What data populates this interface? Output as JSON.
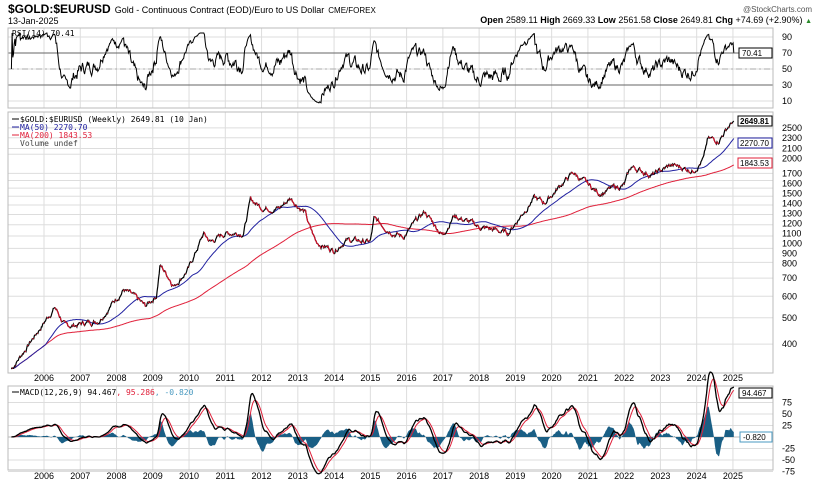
{
  "header": {
    "symbol": "$GOLD:$EURUSD",
    "description": "Gold - Continuous Contract (EOD)/Euro to US Dollar",
    "exchange": "CME/FOREX",
    "brand": "@StockCharts.com",
    "date": "13-Jan-2025",
    "open_label": "Open",
    "open": "2589.11",
    "high_label": "High",
    "high": "2669.33",
    "low_label": "Low",
    "low": "2561.58",
    "close_label": "Close",
    "close": "2649.81",
    "chg_label": "Chg",
    "chg": "+74.69 (+2.90%)",
    "up_arrow": "▲"
  },
  "colors": {
    "price": "#000000",
    "price_down": "#d0102a",
    "ma50": "#2020a0",
    "ma200": "#e0203a",
    "macd_signal": "#e0203a",
    "histogram": "#1a5f85",
    "rsi_fill": "#4a7a4a",
    "grid": "#dddddd"
  },
  "rsi": {
    "legend": "RSI(14) 70.41",
    "value_label": "70.41",
    "ticks": [
      "90",
      "70",
      "50",
      "30",
      "10"
    ],
    "ylim": [
      0,
      100
    ]
  },
  "price": {
    "legend_main": "$GOLD:$EURUSD (Weekly) 2649.81 (10 Jan)",
    "legend_ma50": "MA(50) 2270.70",
    "legend_ma200": "MA(200) 1843.53",
    "legend_volume": "Volume undef",
    "last_label": "2649.81",
    "ma50_label": "2270.70",
    "ma200_label": "1843.53",
    "ticks": [
      "2500",
      "2300",
      "2100",
      "2000",
      "1700",
      "1600",
      "1500",
      "1400",
      "1300",
      "1200",
      "1100",
      "1000",
      "900",
      "800",
      "700",
      "600",
      "500",
      "400"
    ],
    "scale": "log"
  },
  "macd": {
    "legend_name": "MACD(12,26,9) 94.467",
    "legend_signal": ", 95.286",
    "legend_hist": ", -0.820",
    "macd_label": "94.467",
    "hist_label": "-0.820",
    "ticks": [
      "75",
      "50",
      "25",
      "-25",
      "-50",
      "-75"
    ]
  },
  "x_axis": {
    "years": [
      "2006",
      "2007",
      "2008",
      "2009",
      "2010",
      "2011",
      "2012",
      "2013",
      "2014",
      "2015",
      "2016",
      "2017",
      "2018",
      "2019",
      "2020",
      "2021",
      "2022",
      "2023",
      "2024",
      "2025"
    ]
  },
  "chart_data": {
    "type": "line",
    "title": "$GOLD:$EURUSD",
    "frequency": "Weekly",
    "yscale": "log",
    "series": [
      {
        "name": "$GOLD:$EURUSD",
        "points": [
          [
            2005.1,
            324
          ],
          [
            2006.3,
            548
          ],
          [
            2006.6,
            462
          ],
          [
            2007.5,
            490
          ],
          [
            2008.2,
            638
          ],
          [
            2008.8,
            548
          ],
          [
            2009.1,
            606
          ],
          [
            2009.2,
            782
          ],
          [
            2009.6,
            660
          ],
          [
            2010.0,
            763
          ],
          [
            2010.4,
            1017
          ],
          [
            2010.6,
            950
          ],
          [
            2011.0,
            1025
          ],
          [
            2011.5,
            1034
          ],
          [
            2011.7,
            1357
          ],
          [
            2012.0,
            1279
          ],
          [
            2012.5,
            1268
          ],
          [
            2012.8,
            1380
          ],
          [
            2013.2,
            1226
          ],
          [
            2013.3,
            1098
          ],
          [
            2013.5,
            950
          ],
          [
            2014.0,
            888
          ],
          [
            2014.3,
            967
          ],
          [
            2015.0,
            950
          ],
          [
            2015.1,
            1145
          ],
          [
            2015.9,
            990
          ],
          [
            2016.5,
            1226
          ],
          [
            2017.0,
            1008
          ],
          [
            2017.3,
            1195
          ],
          [
            2018.0,
            1079
          ],
          [
            2018.8,
            1025
          ],
          [
            2019.5,
            1380
          ],
          [
            2019.8,
            1323
          ],
          [
            2020.3,
            1567
          ],
          [
            2020.6,
            1706
          ],
          [
            2021.0,
            1540
          ],
          [
            2021.3,
            1440
          ],
          [
            2022.0,
            1540
          ],
          [
            2022.2,
            1792
          ],
          [
            2022.8,
            1679
          ],
          [
            2023.3,
            1818
          ],
          [
            2023.9,
            1750
          ],
          [
            2024.2,
            1937
          ],
          [
            2024.3,
            2254
          ],
          [
            2024.6,
            2254
          ],
          [
            2024.9,
            2560
          ],
          [
            2025.03,
            2649.81
          ]
        ]
      },
      {
        "name": "MA(50)",
        "last": 2270.7
      },
      {
        "name": "MA(200)",
        "last": 1843.53
      }
    ],
    "indicators": {
      "RSI(14)": 70.41,
      "MACD": 94.467,
      "Signal": 95.286,
      "Histogram": -0.82
    },
    "xlim": [
      2005.06,
      2025.03
    ]
  }
}
